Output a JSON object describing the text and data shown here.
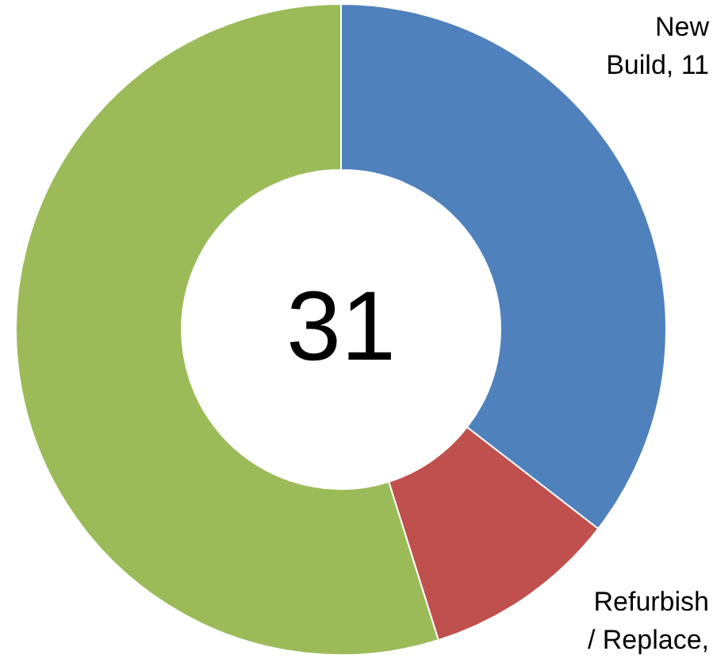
{
  "chart_data": {
    "type": "donut",
    "categories": [
      "New Build",
      "Refurbish / Replace",
      null
    ],
    "values": [
      11,
      3,
      17
    ],
    "colors": [
      "#4f81bd",
      "#c0504d",
      "#9bbb59"
    ],
    "value_labels": [
      ", 11",
      ",",
      null
    ],
    "annotations": [
      "31"
    ],
    "legend": false
  }
}
